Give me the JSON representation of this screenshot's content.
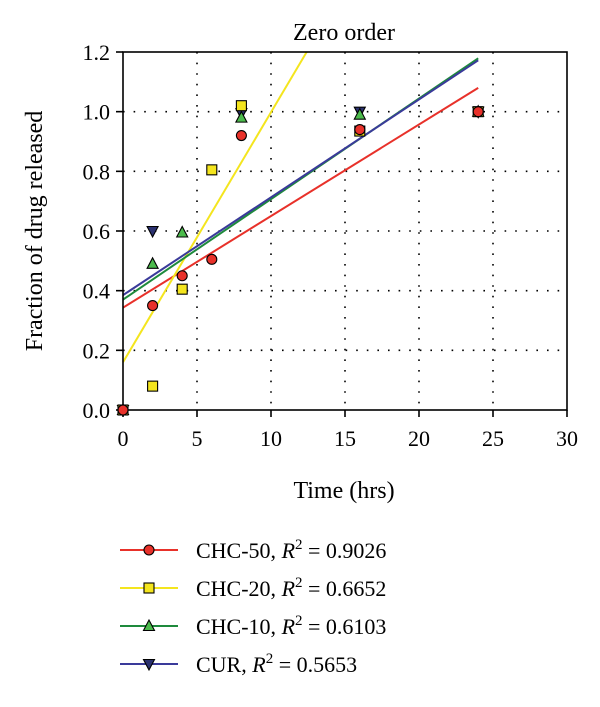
{
  "chart_data": {
    "type": "scatter",
    "title": "Zero order",
    "xlabel": "Time (hrs)",
    "ylabel": "Fraction of drug released",
    "xlim": [
      0,
      30
    ],
    "ylim": [
      0,
      1.2
    ],
    "x_ticks": [
      "0",
      "5",
      "10",
      "15",
      "20",
      "25",
      "30"
    ],
    "y_ticks": [
      "0.0",
      "0.2",
      "0.4",
      "0.6",
      "0.8",
      "1.0",
      "1.2"
    ],
    "grid": true,
    "legend_position": "bottom",
    "series": [
      {
        "name": "CHC-50",
        "r2_value": "0.9026",
        "color": "#e8312a",
        "marker_fill": "#e8312a",
        "marker": "circle",
        "points": [
          [
            0,
            0.0
          ],
          [
            2,
            0.35
          ],
          [
            4,
            0.45
          ],
          [
            6,
            0.505
          ],
          [
            8,
            0.92
          ],
          [
            16,
            0.94
          ],
          [
            24,
            1.0
          ]
        ],
        "fit": {
          "intercept": 0.343,
          "slope": 0.0307
        }
      },
      {
        "name": "CHC-20",
        "r2_value": "0.6652",
        "color": "#f4e51e",
        "marker_fill": "#f4e51e",
        "marker": "square",
        "points": [
          [
            0,
            0.0
          ],
          [
            2,
            0.08
          ],
          [
            4,
            0.405
          ],
          [
            6,
            0.805
          ],
          [
            8,
            1.02
          ],
          [
            16,
            0.935
          ],
          [
            24,
            1.0
          ]
        ],
        "fit": {
          "intercept": 0.16,
          "slope": 0.0838
        }
      },
      {
        "name": "CHC-10",
        "r2_value": "0.6103",
        "color": "#1e8a3c",
        "marker_fill": "#4cbb4c",
        "marker": "triangle-up",
        "points": [
          [
            0,
            0.0
          ],
          [
            2,
            0.49
          ],
          [
            4,
            0.595
          ],
          [
            8,
            0.98
          ],
          [
            16,
            0.99
          ],
          [
            24,
            1.0
          ]
        ],
        "fit": {
          "intercept": 0.37,
          "slope": 0.0337
        }
      },
      {
        "name": "CUR",
        "r2_value": "0.5653",
        "color": "#3a3a9a",
        "marker_fill": "#2b3170",
        "marker": "triangle-down",
        "points": [
          [
            0,
            0.0
          ],
          [
            2,
            0.6
          ],
          [
            8,
            0.995
          ],
          [
            16,
            1.0
          ],
          [
            24,
            1.0
          ]
        ],
        "fit": {
          "intercept": 0.385,
          "slope": 0.0328
        }
      }
    ]
  },
  "legend": {
    "r2_symbol": "R",
    "r2_exponent": "2",
    "equals": "="
  }
}
